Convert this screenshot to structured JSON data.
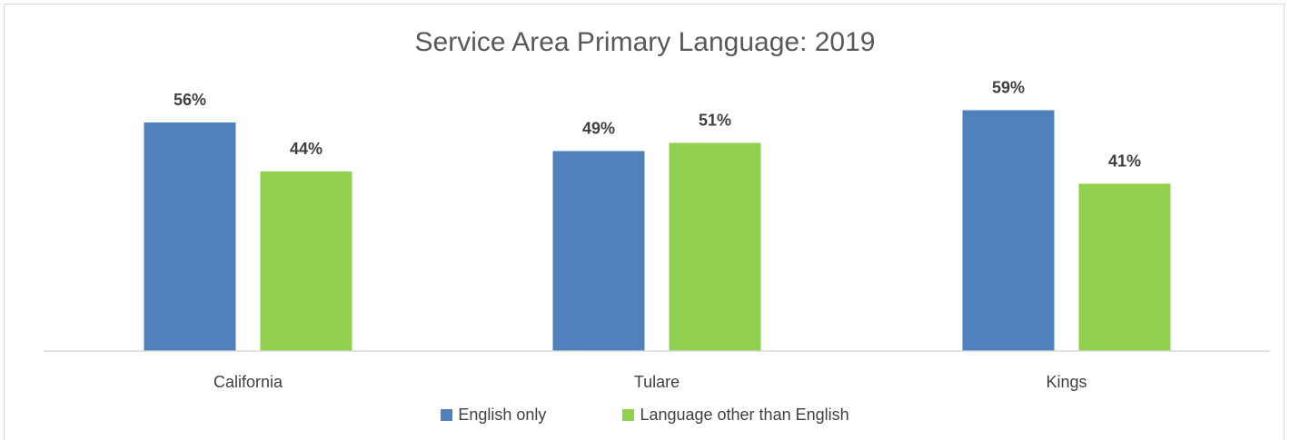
{
  "chart_data": {
    "type": "bar",
    "title": "Service Area Primary Language: 2019",
    "categories": [
      "California",
      "Tulare",
      "Kings"
    ],
    "series": [
      {
        "name": "English only",
        "values": [
          56,
          49,
          59
        ],
        "labels": [
          "56%",
          "49%",
          "59%"
        ],
        "color": "#4f81bd"
      },
      {
        "name": "Language other than English",
        "values": [
          44,
          51,
          41
        ],
        "labels": [
          "44%",
          "51%",
          "41%"
        ],
        "color": "#92d050"
      }
    ],
    "ylim": [
      0,
      70
    ],
    "grid": false,
    "legend_position": "bottom",
    "axis_color": "#d9d9d9"
  }
}
